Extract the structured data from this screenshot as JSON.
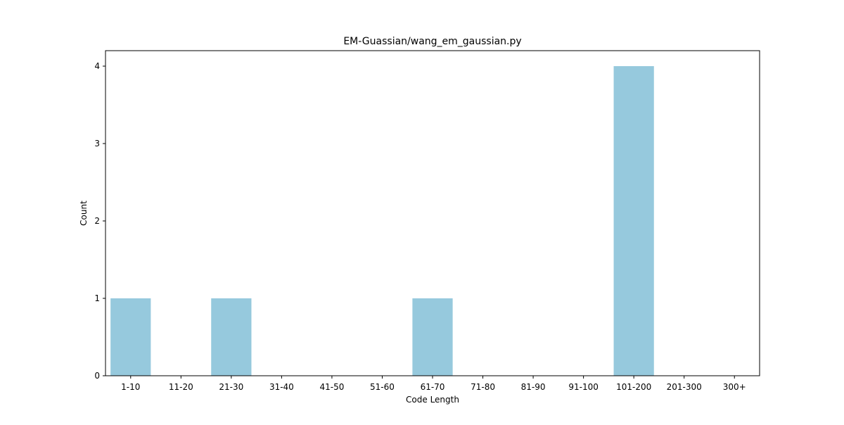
{
  "chart_data": {
    "type": "bar",
    "title": "EM-Guassian/wang_em_gaussian.py",
    "xlabel": "Code Length",
    "ylabel": "Count",
    "categories": [
      "1-10",
      "11-20",
      "21-30",
      "31-40",
      "41-50",
      "51-60",
      "61-70",
      "71-80",
      "81-90",
      "91-100",
      "101-200",
      "201-300",
      "300+"
    ],
    "values": [
      1,
      0,
      1,
      0,
      0,
      0,
      1,
      0,
      0,
      0,
      4,
      0,
      0
    ],
    "ylim": [
      0,
      4.2
    ],
    "yticks": [
      "0",
      "1",
      "2",
      "3",
      "4"
    ],
    "bar_color": "#96c9dd",
    "grid": false,
    "legend": "none"
  }
}
